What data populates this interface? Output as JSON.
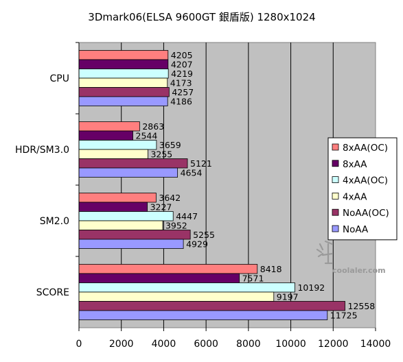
{
  "chart_data": {
    "type": "bar",
    "orientation": "horizontal",
    "title": "3Dmark06(ELSA  9600GT  銀盾版)  1280x1024",
    "categories": [
      "CPU",
      "HDR/SM3.0",
      "SM2.0",
      "SCORE"
    ],
    "series": [
      {
        "name": "8xAA(OC)",
        "color": "#ff7f7f",
        "values": [
          4205,
          2863,
          3642,
          8418
        ]
      },
      {
        "name": "8xAA",
        "color": "#660066",
        "values": [
          4207,
          2544,
          3227,
          7571
        ]
      },
      {
        "name": "4xAA(OC)",
        "color": "#ccffff",
        "values": [
          4219,
          3659,
          4447,
          10192
        ]
      },
      {
        "name": "4xAA",
        "color": "#ffffcc",
        "values": [
          4173,
          3255,
          3952,
          9197
        ]
      },
      {
        "name": "NoAA(OC)",
        "color": "#993366",
        "values": [
          4257,
          5121,
          5255,
          12558
        ]
      },
      {
        "name": "NoAA",
        "color": "#9999ff",
        "values": [
          4186,
          4654,
          4929,
          11725
        ]
      }
    ],
    "xlim": [
      0,
      14000
    ],
    "xticks": [
      0,
      2000,
      4000,
      6000,
      8000,
      10000,
      12000,
      14000
    ],
    "grid": true,
    "legend_position": "right",
    "plot_background": "#c0c0c0"
  },
  "watermark": {
    "text": "coolaler.com"
  }
}
